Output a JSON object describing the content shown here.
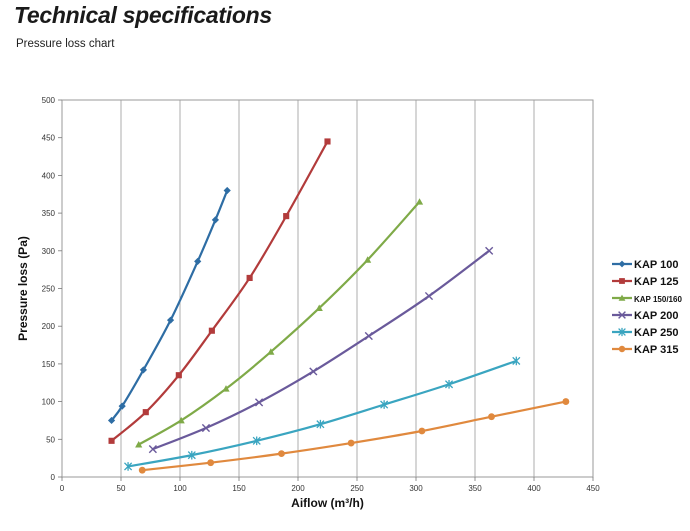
{
  "page": {
    "heading": "Technical specifications",
    "subheading": "Pressure loss chart"
  },
  "chart_data": {
    "type": "line",
    "title": "",
    "xlabel": "Aiflow (m³/h)",
    "ylabel": "Pressure loss (Pa)",
    "xlim": [
      0,
      450
    ],
    "ylim": [
      0,
      500
    ],
    "xticks": [
      "0",
      "50",
      "100",
      "150",
      "200",
      "250",
      "300",
      "350",
      "400",
      "450"
    ],
    "yticks": [
      "0",
      "50",
      "100",
      "150",
      "200",
      "250",
      "300",
      "350",
      "400",
      "450",
      "500"
    ],
    "grid": "vertical",
    "legend": "right",
    "series": [
      {
        "name": "KAP 100",
        "color": "#2e6da4",
        "marker": "diamond",
        "points": [
          [
            42,
            75
          ],
          [
            51,
            94
          ],
          [
            69,
            142
          ],
          [
            92,
            208
          ],
          [
            115,
            286
          ],
          [
            130,
            341
          ],
          [
            140,
            380
          ]
        ]
      },
      {
        "name": "KAP 125",
        "color": "#b23b3b",
        "marker": "square",
        "points": [
          [
            42,
            48
          ],
          [
            71,
            86
          ],
          [
            99,
            135
          ],
          [
            127,
            194
          ],
          [
            159,
            264
          ],
          [
            190,
            346
          ],
          [
            225,
            445
          ]
        ]
      },
      {
        "name": "KAP 150/160",
        "color": "#7faa48",
        "marker": "triangle",
        "points": [
          [
            65,
            43
          ],
          [
            101,
            75
          ],
          [
            139,
            117
          ],
          [
            177,
            166
          ],
          [
            218,
            224
          ],
          [
            259,
            288
          ],
          [
            303,
            365
          ]
        ]
      },
      {
        "name": "KAP 200",
        "color": "#6a5a9b",
        "marker": "x",
        "points": [
          [
            77,
            37
          ],
          [
            122,
            65
          ],
          [
            167,
            99
          ],
          [
            213,
            140
          ],
          [
            260,
            187
          ],
          [
            311,
            240
          ],
          [
            362,
            300
          ]
        ]
      },
      {
        "name": "KAP 250",
        "color": "#3aa5c0",
        "marker": "star",
        "points": [
          [
            56,
            14
          ],
          [
            110,
            29
          ],
          [
            165,
            48
          ],
          [
            219,
            70
          ],
          [
            273,
            96
          ],
          [
            328,
            123
          ],
          [
            385,
            154
          ]
        ]
      },
      {
        "name": "KAP 315",
        "color": "#e0893e",
        "marker": "circle",
        "points": [
          [
            68,
            9
          ],
          [
            126,
            19
          ],
          [
            186,
            31
          ],
          [
            245,
            45
          ],
          [
            305,
            61
          ],
          [
            364,
            80
          ],
          [
            427,
            100
          ]
        ]
      }
    ]
  }
}
